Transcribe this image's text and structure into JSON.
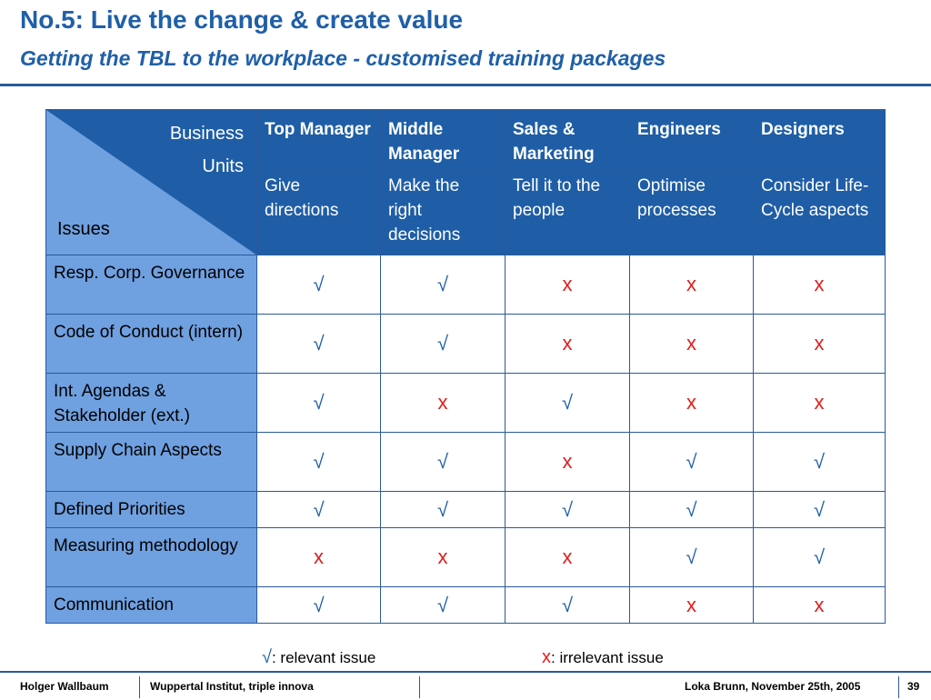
{
  "title": "No.5: Live the change & create value",
  "subtitle": "Getting the TBL to the workplace - customised training packages",
  "table": {
    "corner_business": "Business",
    "corner_units": "Units",
    "corner_issues": "Issues",
    "columns": [
      {
        "label": "Top Manager",
        "desc": "Give directions"
      },
      {
        "label": "Middle Manager",
        "desc": "Make the right decisions"
      },
      {
        "label": "Sales & Marketing",
        "desc": "Tell it to the people"
      },
      {
        "label": "Engineers",
        "desc": "Optimise processes"
      },
      {
        "label": "Designers",
        "desc": "Consider Life-Cycle aspects"
      }
    ],
    "rows": [
      {
        "issue": "Resp. Corp. Governance",
        "marks": [
          "√",
          "√",
          "x",
          "x",
          "x"
        ]
      },
      {
        "issue": "Code of Conduct (intern)",
        "marks": [
          "√",
          "√",
          "x",
          "x",
          "x"
        ]
      },
      {
        "issue": "Int. Agendas & Stakeholder (ext.)",
        "marks": [
          "√",
          "x",
          "√",
          "x",
          "x"
        ]
      },
      {
        "issue": "Supply Chain Aspects",
        "marks": [
          "√",
          "√",
          "x",
          "√",
          "√"
        ]
      },
      {
        "issue": "Defined Priorities",
        "marks": [
          "√",
          "√",
          "√",
          "√",
          "√"
        ]
      },
      {
        "issue": "Measuring methodology",
        "marks": [
          "x",
          "x",
          "x",
          "√",
          "√"
        ]
      },
      {
        "issue": "Communication",
        "marks": [
          "√",
          "√",
          "√",
          "x",
          "x"
        ]
      }
    ]
  },
  "legend": {
    "yes_symbol": "√",
    "yes_text": ": relevant issue",
    "no_symbol": "x",
    "no_text": ": irrelevant issue"
  },
  "footer": {
    "author": "Holger Wallbaum",
    "org": "Wuppertal Institut, triple innova",
    "event": "Loka Brunn, November 25th, 2005",
    "page": "39"
  }
}
